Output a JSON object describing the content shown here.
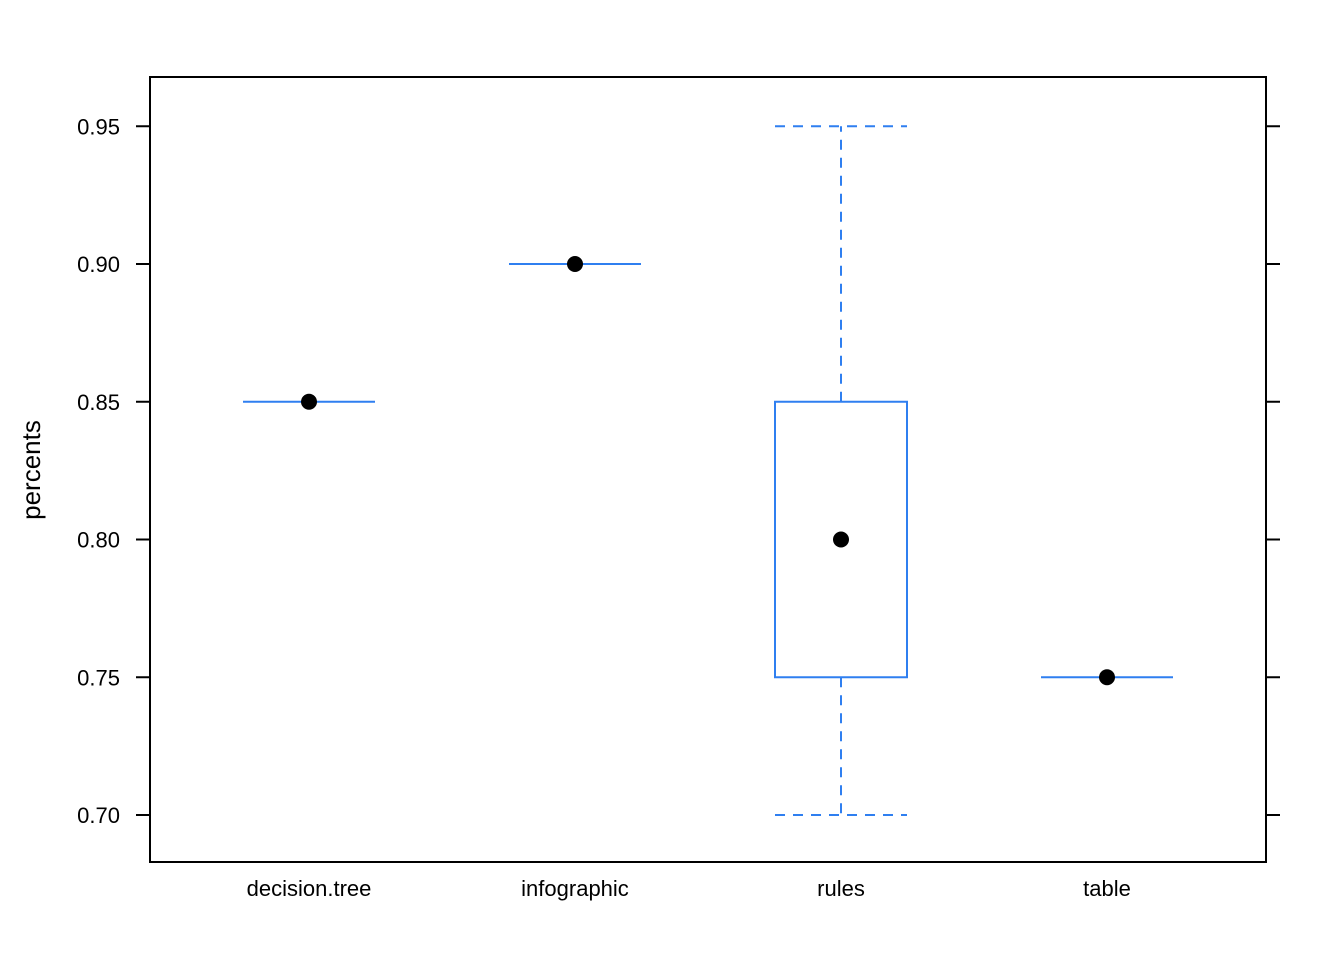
{
  "chart_data": {
    "type": "box",
    "title": "",
    "xlabel": "",
    "ylabel": "percents",
    "categories": [
      "decision.tree",
      "infographic",
      "rules",
      "table"
    ],
    "boxes": [
      {
        "category": "decision.tree",
        "min": 0.85,
        "q1": 0.85,
        "median": 0.85,
        "q3": 0.85,
        "max": 0.85
      },
      {
        "category": "infographic",
        "min": 0.9,
        "q1": 0.9,
        "median": 0.9,
        "q3": 0.9,
        "max": 0.9
      },
      {
        "category": "rules",
        "min": 0.7,
        "q1": 0.75,
        "median": 0.8,
        "q3": 0.85,
        "max": 0.95
      },
      {
        "category": "table",
        "min": 0.75,
        "q1": 0.75,
        "median": 0.75,
        "q3": 0.75,
        "max": 0.75
      }
    ],
    "yticks": [
      "0.70",
      "0.75",
      "0.80",
      "0.85",
      "0.90",
      "0.95"
    ],
    "ylim": [
      0.682,
      0.968
    ],
    "grid": false,
    "colors": {
      "box": "#2f7ff0",
      "median_dot": "#000000",
      "frame": "#000000"
    }
  }
}
